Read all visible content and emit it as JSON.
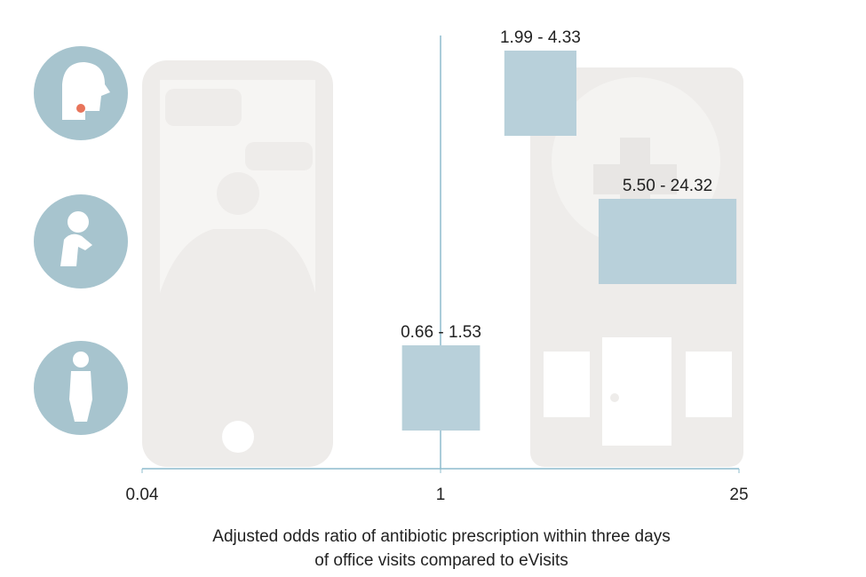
{
  "chart_data": {
    "type": "range_bar",
    "categories": [
      null,
      null,
      null
    ],
    "low": [
      1.99,
      5.5,
      0.66
    ],
    "high": [
      4.33,
      24.32,
      1.53
    ],
    "value_labels": [
      "1.99 - 4.33",
      "5.50 - 24.32",
      "0.66 - 1.53"
    ],
    "color": "#b8d0da",
    "axis_color": "#8dbccd",
    "xlim": [
      0.04,
      25
    ],
    "xticks": [
      0.04,
      1,
      25
    ],
    "log_x": true,
    "reference_line": 1,
    "xlabel": [
      "Adjusted odds ratio of antibiotic prescription within three days",
      "of office visits compared to eVisits"
    ]
  }
}
